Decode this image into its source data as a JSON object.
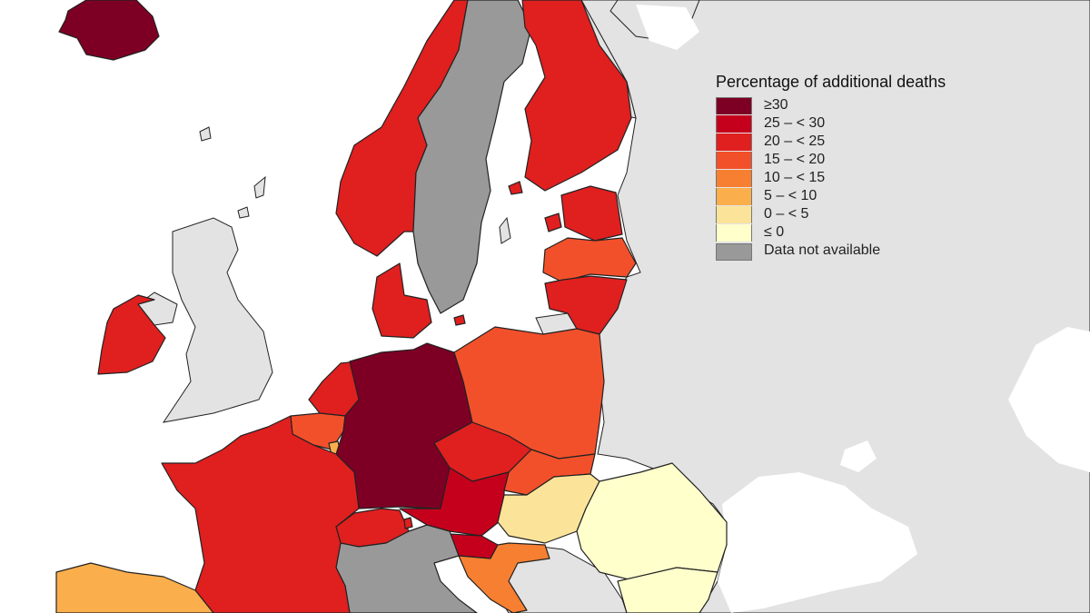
{
  "legend": {
    "title": "Percentage of additional deaths",
    "items": [
      {
        "label": "≥30",
        "color": "#7d0024"
      },
      {
        "label": "25 – < 30",
        "color": "#c5001c"
      },
      {
        "label": "20 – < 25",
        "color": "#e01f1f"
      },
      {
        "label": "15 – < 20",
        "color": "#f2502b"
      },
      {
        "label": "10 – < 15",
        "color": "#f67f31"
      },
      {
        "label": "5 – < 10",
        "color": "#fbae4c"
      },
      {
        "label": "0 – < 5",
        "color": "#fbe49a"
      },
      {
        "label": "≤ 0",
        "color": "#ffffcc"
      },
      {
        "label": "Data not available",
        "color": "#999999"
      }
    ]
  },
  "map": {
    "sea_color": "#ffffff",
    "non_eu_color": "#e3e3e3",
    "border_color": "#222222",
    "countries": [
      {
        "name": "Iceland",
        "class": "≥30"
      },
      {
        "name": "Norway",
        "class": "20 – < 25"
      },
      {
        "name": "Sweden",
        "class": "Data not available"
      },
      {
        "name": "Finland",
        "class": "20 – < 25"
      },
      {
        "name": "Estonia",
        "class": "20 – < 25"
      },
      {
        "name": "Latvia",
        "class": "15 – < 20"
      },
      {
        "name": "Lithuania",
        "class": "20 – < 25"
      },
      {
        "name": "Denmark",
        "class": "20 – < 25"
      },
      {
        "name": "Ireland",
        "class": "20 – < 25"
      },
      {
        "name": "Netherlands",
        "class": "20 – < 25"
      },
      {
        "name": "Belgium",
        "class": "15 – < 20"
      },
      {
        "name": "Luxembourg",
        "class": "5 – < 10"
      },
      {
        "name": "Germany",
        "class": "≥30"
      },
      {
        "name": "Poland",
        "class": "15 – < 20"
      },
      {
        "name": "Czechia",
        "class": "20 – < 25"
      },
      {
        "name": "Slovakia",
        "class": "15 – < 20"
      },
      {
        "name": "Austria",
        "class": "25 – < 30"
      },
      {
        "name": "Slovenia",
        "class": "25 – < 30"
      },
      {
        "name": "Hungary",
        "class": "0 – < 5"
      },
      {
        "name": "Romania",
        "class": "≤ 0"
      },
      {
        "name": "Bulgaria",
        "class": "≤ 0"
      },
      {
        "name": "Croatia",
        "class": "10 – < 15"
      },
      {
        "name": "Switzerland",
        "class": "20 – < 25"
      },
      {
        "name": "Liechtenstein",
        "class": "20 – < 25"
      },
      {
        "name": "France",
        "class": "20 – < 25"
      },
      {
        "name": "Italy",
        "class": "Data not available"
      },
      {
        "name": "Spain",
        "class": "5 – < 10"
      }
    ]
  }
}
